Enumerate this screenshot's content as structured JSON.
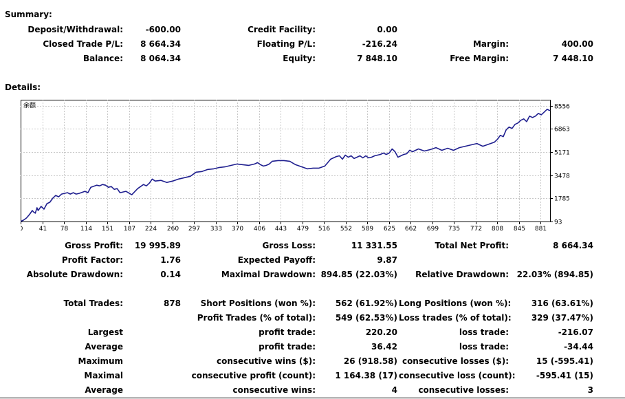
{
  "summary": {
    "title": "Summary:",
    "rows": [
      [
        {
          "label": "Deposit/Withdrawal:",
          "value": "-600.00"
        },
        {
          "label": "Credit Facility:",
          "value": "0.00"
        },
        {
          "label": "",
          "value": ""
        }
      ],
      [
        {
          "label": "Closed Trade P/L:",
          "value": "8 664.34"
        },
        {
          "label": "Floating P/L:",
          "value": "-216.24"
        },
        {
          "label": "Margin:",
          "value": "400.00"
        }
      ],
      [
        {
          "label": "Balance:",
          "value": "8 064.34"
        },
        {
          "label": "Equity:",
          "value": "7 848.10"
        },
        {
          "label": "Free Margin:",
          "value": "7 448.10"
        }
      ]
    ]
  },
  "details": {
    "title": "Details:"
  },
  "chart_data": {
    "type": "line",
    "series_label": "余额",
    "line_color": "#1f1f8f",
    "grid": true,
    "xlim": [
      0,
      905
    ],
    "ylim": [
      93,
      9000
    ],
    "x_ticks": [
      "0",
      "41",
      "78",
      "114",
      "151",
      "187",
      "224",
      "260",
      "297",
      "333",
      "370",
      "406",
      "443",
      "479",
      "516",
      "552",
      "589",
      "625",
      "662",
      "699",
      "735",
      "772",
      "808",
      "845",
      "881"
    ],
    "y_ticks": [
      "93",
      "1785",
      "3478",
      "5171",
      "6863",
      "8556"
    ],
    "series": [
      {
        "name": "余额",
        "x": [
          0,
          5,
          10,
          15,
          20,
          22,
          25,
          28,
          30,
          35,
          40,
          45,
          50,
          55,
          60,
          65,
          70,
          75,
          80,
          85,
          90,
          95,
          100,
          110,
          115,
          120,
          130,
          135,
          140,
          145,
          150,
          155,
          160,
          165,
          170,
          180,
          190,
          200,
          210,
          215,
          220,
          225,
          230,
          240,
          250,
          260,
          270,
          280,
          290,
          300,
          310,
          320,
          330,
          340,
          350,
          360,
          370,
          380,
          390,
          400,
          405,
          410,
          415,
          420,
          425,
          430,
          440,
          450,
          460,
          470,
          480,
          490,
          500,
          510,
          520,
          530,
          540,
          545,
          550,
          555,
          560,
          565,
          570,
          575,
          580,
          585,
          590,
          595,
          600,
          605,
          610,
          615,
          620,
          625,
          630,
          635,
          640,
          645,
          650,
          655,
          660,
          665,
          670,
          680,
          690,
          700,
          710,
          720,
          730,
          740,
          750,
          760,
          770,
          780,
          790,
          800,
          810,
          815,
          820,
          825,
          830,
          835,
          840,
          845,
          850,
          855,
          860,
          865,
          870,
          875,
          880,
          885,
          890,
          895,
          900,
          905
        ],
        "values": [
          100,
          200,
          350,
          600,
          900,
          800,
          700,
          1100,
          900,
          1200,
          1000,
          1400,
          1500,
          1800,
          2000,
          1900,
          2100,
          2150,
          2200,
          2100,
          2200,
          2100,
          2150,
          2300,
          2200,
          2600,
          2750,
          2700,
          2800,
          2750,
          2600,
          2650,
          2450,
          2500,
          2200,
          2300,
          2050,
          2500,
          2800,
          2700,
          2900,
          3200,
          3050,
          3100,
          2950,
          3050,
          3200,
          3300,
          3400,
          3700,
          3750,
          3900,
          3950,
          4050,
          4100,
          4200,
          4300,
          4250,
          4200,
          4300,
          4400,
          4250,
          4150,
          4200,
          4300,
          4500,
          4550,
          4550,
          4500,
          4250,
          4100,
          3950,
          4000,
          4000,
          4150,
          4650,
          4850,
          4900,
          4650,
          4950,
          4800,
          4900,
          4700,
          4800,
          4900,
          4750,
          4900,
          4750,
          4800,
          4900,
          4950,
          5000,
          5100,
          5000,
          5100,
          5400,
          5200,
          4800,
          4900,
          5000,
          5050,
          5300,
          5200,
          5400,
          5250,
          5350,
          5500,
          5300,
          5450,
          5300,
          5500,
          5600,
          5700,
          5800,
          5600,
          5750,
          5900,
          6100,
          6400,
          6300,
          6800,
          7000,
          6900,
          7200,
          7300,
          7500,
          7600,
          7400,
          7800,
          7700,
          7800,
          8000,
          7900,
          8100,
          8300,
          8200
        ],
        "note_unused": ""
      }
    ]
  },
  "stats": {
    "row1": [
      {
        "label": "Gross Profit:",
        "value": "19 995.89"
      },
      {
        "label": "Gross Loss:",
        "value": "11 331.55"
      },
      {
        "label": "Total Net Profit:",
        "value": "8 664.34"
      }
    ],
    "row2": [
      {
        "label": "Profit Factor:",
        "value": "1.76"
      },
      {
        "label": "Expected Payoff:",
        "value": "9.87"
      }
    ],
    "row3": [
      {
        "label": "Absolute Drawdown:",
        "value": "0.14"
      },
      {
        "label": "Maximal Drawdown:",
        "value": "894.85 (22.03%)"
      },
      {
        "label": "Relative Drawdown:",
        "value": "22.03% (894.85)"
      }
    ],
    "total_trades": {
      "label": "Total Trades:",
      "value": "878"
    },
    "short_positions": {
      "label": "Short Positions (won %):",
      "value": "562 (61.92%)"
    },
    "long_positions": {
      "label": "Long Positions (won %):",
      "value": "316 (63.61%)"
    },
    "profit_trades": {
      "label": "Profit Trades (% of total):",
      "value": "549 (62.53%)"
    },
    "loss_trades": {
      "label": "Loss trades (% of total):",
      "value": "329 (37.47%)"
    },
    "table": [
      {
        "group": "Largest",
        "l1": "profit trade:",
        "v1": "220.20",
        "l2": "loss trade:",
        "v2": "-216.07"
      },
      {
        "group": "Average",
        "l1": "profit trade:",
        "v1": "36.42",
        "l2": "loss trade:",
        "v2": "-34.44"
      },
      {
        "group": "Maximum",
        "l1": "consecutive wins ($):",
        "v1": "26 (918.58)",
        "l2": "consecutive losses ($):",
        "v2": "15 (-595.41)"
      },
      {
        "group": "Maximal",
        "l1": "consecutive profit (count):",
        "v1": "1 164.38 (17)",
        "l2": "consecutive loss (count):",
        "v2": "-595.41 (15)"
      },
      {
        "group": "Average",
        "l1": "consecutive wins:",
        "v1": "4",
        "l2": "consecutive losses:",
        "v2": "3"
      }
    ]
  }
}
